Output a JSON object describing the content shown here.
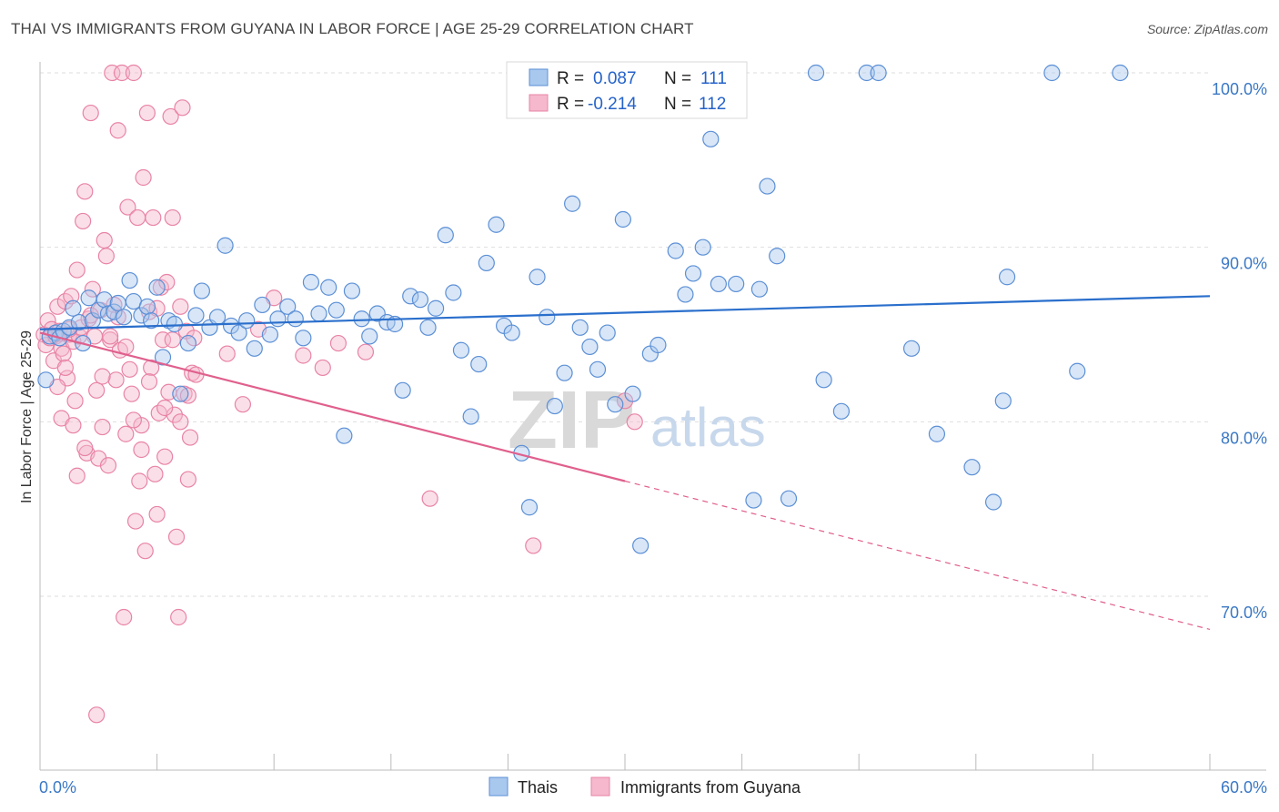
{
  "title": "THAI VS IMMIGRANTS FROM GUYANA IN LABOR FORCE | AGE 25-29 CORRELATION CHART",
  "source": "Source: ZipAtlas.com",
  "watermark": {
    "zip": "ZIP",
    "atlas": "atlas"
  },
  "legend": {
    "rows": [
      {
        "r_label": "R =",
        "r_value": "0.087",
        "n_label": "N =",
        "n_value": "111"
      },
      {
        "r_label": "R =",
        "r_value": "-0.214",
        "n_label": "N =",
        "n_value": "112"
      }
    ]
  },
  "bottom_legend": [
    "Thais",
    "Immigrants from Guyana"
  ],
  "colors": {
    "thais_fill": "#a9c8ee",
    "thais_stroke": "#5b8fd6",
    "thais_line": "#2a6fcc",
    "guyana_fill": "#f5b8cc",
    "guyana_stroke": "#e983a6",
    "guyana_line": "#e0608d",
    "grid": "#dedede",
    "axis_text": "#3b78c4"
  },
  "chart_data": {
    "type": "scatter",
    "title": "THAI VS IMMIGRANTS FROM GUYANA IN LABOR FORCE | AGE 25-29 CORRELATION CHART",
    "xlabel": "",
    "ylabel": "In Labor Force | Age 25-29",
    "xlim": [
      0,
      60
    ],
    "ylim": [
      60,
      100
    ],
    "x_tick_labels": [
      "0.0%",
      "60.0%"
    ],
    "y_ticks": [
      70,
      80,
      90,
      100
    ],
    "y_tick_labels": [
      "70.0%",
      "80.0%",
      "90.0%",
      "100.0%"
    ],
    "grid": true,
    "legend_position": "top-center",
    "series": [
      {
        "name": "Thais",
        "R": 0.087,
        "N": 111,
        "trend": {
          "x": [
            0,
            60
          ],
          "y": [
            85.3,
            87.2
          ],
          "dashed_from": null
        },
        "points": [
          [
            0.3,
            82.4
          ],
          [
            0.5,
            84.9
          ],
          [
            0.8,
            85.1
          ],
          [
            1.0,
            84.8
          ],
          [
            1.2,
            85.2
          ],
          [
            1.5,
            85.4
          ],
          [
            1.7,
            86.5
          ],
          [
            2.0,
            85.7
          ],
          [
            2.2,
            84.5
          ],
          [
            2.5,
            87.1
          ],
          [
            2.7,
            85.8
          ],
          [
            3.0,
            86.4
          ],
          [
            3.3,
            87.0
          ],
          [
            3.5,
            86.2
          ],
          [
            3.8,
            86.3
          ],
          [
            4.0,
            86.8
          ],
          [
            4.3,
            86.0
          ],
          [
            4.6,
            88.1
          ],
          [
            4.8,
            86.9
          ],
          [
            5.2,
            86.1
          ],
          [
            5.5,
            86.6
          ],
          [
            5.7,
            85.8
          ],
          [
            6.0,
            87.7
          ],
          [
            6.3,
            83.7
          ],
          [
            6.6,
            85.8
          ],
          [
            6.9,
            85.6
          ],
          [
            7.2,
            81.6
          ],
          [
            7.6,
            84.5
          ],
          [
            8.0,
            86.1
          ],
          [
            8.3,
            87.5
          ],
          [
            8.7,
            85.4
          ],
          [
            9.1,
            86.0
          ],
          [
            9.5,
            90.1
          ],
          [
            9.8,
            85.5
          ],
          [
            10.2,
            85.1
          ],
          [
            10.6,
            85.8
          ],
          [
            11.0,
            84.2
          ],
          [
            11.4,
            86.7
          ],
          [
            11.8,
            85.0
          ],
          [
            12.2,
            85.9
          ],
          [
            12.7,
            86.6
          ],
          [
            13.1,
            85.9
          ],
          [
            13.5,
            84.8
          ],
          [
            13.9,
            88.0
          ],
          [
            14.3,
            86.2
          ],
          [
            14.8,
            87.7
          ],
          [
            15.2,
            86.4
          ],
          [
            15.6,
            79.2
          ],
          [
            16.0,
            87.5
          ],
          [
            16.5,
            85.9
          ],
          [
            16.9,
            84.9
          ],
          [
            17.3,
            86.2
          ],
          [
            17.8,
            85.7
          ],
          [
            18.2,
            85.6
          ],
          [
            18.6,
            81.8
          ],
          [
            19.0,
            87.2
          ],
          [
            19.5,
            87.0
          ],
          [
            19.9,
            85.4
          ],
          [
            20.3,
            86.5
          ],
          [
            20.8,
            90.7
          ],
          [
            21.2,
            87.4
          ],
          [
            21.6,
            84.1
          ],
          [
            22.1,
            80.3
          ],
          [
            22.5,
            83.3
          ],
          [
            22.9,
            89.1
          ],
          [
            23.4,
            91.3
          ],
          [
            23.8,
            85.5
          ],
          [
            24.2,
            85.1
          ],
          [
            24.7,
            78.2
          ],
          [
            25.1,
            75.1
          ],
          [
            25.5,
            88.3
          ],
          [
            26.0,
            86.0
          ],
          [
            26.4,
            80.9
          ],
          [
            26.9,
            82.8
          ],
          [
            27.3,
            92.5
          ],
          [
            27.7,
            85.4
          ],
          [
            28.2,
            84.3
          ],
          [
            28.6,
            83.0
          ],
          [
            29.1,
            85.1
          ],
          [
            29.5,
            81.0
          ],
          [
            29.9,
            91.6
          ],
          [
            30.4,
            81.6
          ],
          [
            30.8,
            72.9
          ],
          [
            31.3,
            83.9
          ],
          [
            31.7,
            84.4
          ],
          [
            32.6,
            89.8
          ],
          [
            33.1,
            87.3
          ],
          [
            33.5,
            88.5
          ],
          [
            34.0,
            90.0
          ],
          [
            34.4,
            96.2
          ],
          [
            34.8,
            87.9
          ],
          [
            35.7,
            87.9
          ],
          [
            36.6,
            75.5
          ],
          [
            36.9,
            87.6
          ],
          [
            37.3,
            93.5
          ],
          [
            37.8,
            89.5
          ],
          [
            38.4,
            75.6
          ],
          [
            39.8,
            100.0
          ],
          [
            40.2,
            82.4
          ],
          [
            41.1,
            80.6
          ],
          [
            42.4,
            100.0
          ],
          [
            43.0,
            100.0
          ],
          [
            44.7,
            84.2
          ],
          [
            46.0,
            79.3
          ],
          [
            47.8,
            77.4
          ],
          [
            48.9,
            75.4
          ],
          [
            49.4,
            81.2
          ],
          [
            49.6,
            88.3
          ],
          [
            51.9,
            100.0
          ],
          [
            53.2,
            82.9
          ],
          [
            55.4,
            100.0
          ]
        ]
      },
      {
        "name": "Immigrants from Guyana",
        "R": -0.214,
        "N": 112,
        "trend": {
          "x": [
            0,
            60
          ],
          "y": [
            85.1,
            68.1
          ],
          "dashed_from": 30.0
        },
        "points": [
          [
            0.2,
            85.0
          ],
          [
            0.3,
            84.4
          ],
          [
            0.4,
            85.8
          ],
          [
            0.5,
            84.8
          ],
          [
            0.6,
            85.3
          ],
          [
            0.7,
            83.5
          ],
          [
            0.8,
            84.9
          ],
          [
            0.9,
            86.6
          ],
          [
            1.0,
            85.2
          ],
          [
            1.1,
            84.2
          ],
          [
            1.2,
            83.9
          ],
          [
            1.3,
            86.9
          ],
          [
            1.4,
            82.5
          ],
          [
            1.5,
            85.0
          ],
          [
            1.6,
            87.2
          ],
          [
            1.7,
            84.6
          ],
          [
            1.8,
            81.2
          ],
          [
            1.9,
            88.7
          ],
          [
            2.0,
            84.9
          ],
          [
            2.1,
            85.4
          ],
          [
            2.2,
            91.5
          ],
          [
            2.3,
            93.2
          ],
          [
            2.4,
            78.2
          ],
          [
            2.5,
            85.9
          ],
          [
            2.6,
            97.7
          ],
          [
            2.7,
            87.6
          ],
          [
            2.8,
            84.9
          ],
          [
            2.9,
            81.8
          ],
          [
            3.0,
            77.9
          ],
          [
            3.1,
            86.4
          ],
          [
            3.2,
            79.7
          ],
          [
            3.3,
            90.4
          ],
          [
            3.4,
            89.5
          ],
          [
            3.5,
            77.5
          ],
          [
            3.6,
            84.7
          ],
          [
            3.7,
            100.0
          ],
          [
            3.8,
            86.7
          ],
          [
            3.9,
            82.4
          ],
          [
            4.0,
            96.7
          ],
          [
            4.1,
            84.1
          ],
          [
            4.2,
            100.0
          ],
          [
            4.3,
            68.8
          ],
          [
            4.4,
            79.3
          ],
          [
            4.5,
            92.3
          ],
          [
            4.6,
            83.0
          ],
          [
            4.7,
            81.6
          ],
          [
            4.8,
            100.0
          ],
          [
            4.9,
            74.3
          ],
          [
            5.0,
            91.7
          ],
          [
            5.1,
            76.6
          ],
          [
            5.2,
            79.8
          ],
          [
            5.3,
            94.0
          ],
          [
            5.4,
            72.6
          ],
          [
            5.5,
            97.7
          ],
          [
            5.6,
            86.3
          ],
          [
            5.7,
            83.1
          ],
          [
            5.8,
            91.7
          ],
          [
            5.9,
            77.0
          ],
          [
            6.0,
            74.7
          ],
          [
            6.1,
            80.5
          ],
          [
            6.2,
            87.7
          ],
          [
            6.3,
            84.7
          ],
          [
            6.4,
            78.0
          ],
          [
            6.5,
            88.0
          ],
          [
            6.6,
            81.7
          ],
          [
            6.7,
            97.5
          ],
          [
            6.8,
            91.7
          ],
          [
            6.9,
            80.4
          ],
          [
            7.0,
            73.4
          ],
          [
            7.1,
            68.8
          ],
          [
            7.2,
            80.0
          ],
          [
            7.3,
            98.0
          ],
          [
            7.4,
            81.6
          ],
          [
            7.5,
            85.2
          ],
          [
            7.6,
            76.7
          ],
          [
            7.7,
            79.1
          ],
          [
            7.8,
            82.8
          ],
          [
            7.9,
            84.8
          ],
          [
            0.9,
            82.0
          ],
          [
            1.1,
            80.2
          ],
          [
            1.3,
            83.1
          ],
          [
            1.5,
            85.3
          ],
          [
            1.7,
            79.8
          ],
          [
            1.9,
            76.9
          ],
          [
            2.3,
            78.5
          ],
          [
            2.6,
            86.1
          ],
          [
            2.9,
            63.2
          ],
          [
            3.2,
            82.6
          ],
          [
            3.6,
            84.9
          ],
          [
            4.0,
            86.0
          ],
          [
            4.4,
            84.3
          ],
          [
            4.8,
            80.1
          ],
          [
            5.2,
            78.4
          ],
          [
            5.6,
            82.3
          ],
          [
            6.0,
            86.5
          ],
          [
            6.4,
            80.8
          ],
          [
            6.8,
            84.7
          ],
          [
            7.2,
            86.6
          ],
          [
            7.6,
            81.5
          ],
          [
            8.0,
            82.7
          ],
          [
            9.6,
            83.9
          ],
          [
            10.4,
            81.0
          ],
          [
            11.2,
            85.3
          ],
          [
            12.0,
            87.1
          ],
          [
            13.5,
            83.8
          ],
          [
            14.5,
            83.1
          ],
          [
            15.3,
            84.5
          ],
          [
            16.7,
            84.0
          ],
          [
            20.0,
            75.6
          ],
          [
            25.3,
            72.9
          ],
          [
            30.0,
            81.2
          ],
          [
            30.5,
            80.0
          ]
        ]
      }
    ]
  }
}
